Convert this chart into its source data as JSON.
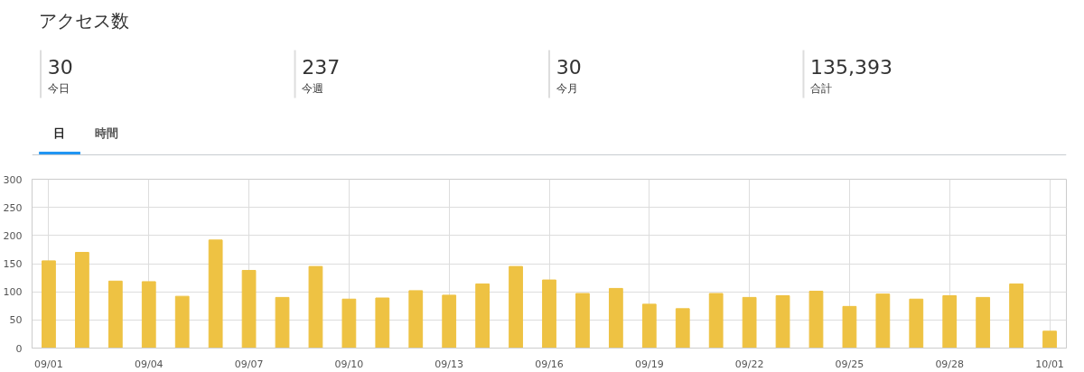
{
  "chart_data": [
    {
      "type": "other",
      "title": "アクセス数",
      "categories": [
        "今日",
        "今週",
        "今月",
        "合計"
      ],
      "values": [
        30,
        237,
        30,
        135393
      ],
      "value_labels": [
        "30",
        "237",
        "30",
        "135,393"
      ],
      "data_labels": true,
      "annotations": [
        "日",
        "時間"
      ]
    },
    {
      "type": "bar",
      "categories": [
        "09/01",
        null,
        null,
        "09/04",
        null,
        null,
        "09/07",
        null,
        null,
        "09/10",
        null,
        null,
        "09/13",
        null,
        null,
        "09/16",
        null,
        null,
        "09/19",
        null,
        null,
        "09/22",
        null,
        null,
        "09/25",
        null,
        null,
        "09/28",
        null,
        null,
        "10/01"
      ],
      "values": [
        155,
        170,
        119,
        118,
        92,
        192,
        138,
        90,
        145,
        87,
        89,
        102,
        94,
        114,
        145,
        121,
        97,
        106,
        78,
        70,
        97,
        90,
        93,
        101,
        74,
        96,
        87,
        93,
        90,
        114,
        30
      ],
      "color": "#eec243",
      "ylim": [
        0,
        300
      ],
      "yticks": [
        0,
        50,
        100,
        150,
        200,
        250,
        300
      ],
      "grid": true
    }
  ]
}
